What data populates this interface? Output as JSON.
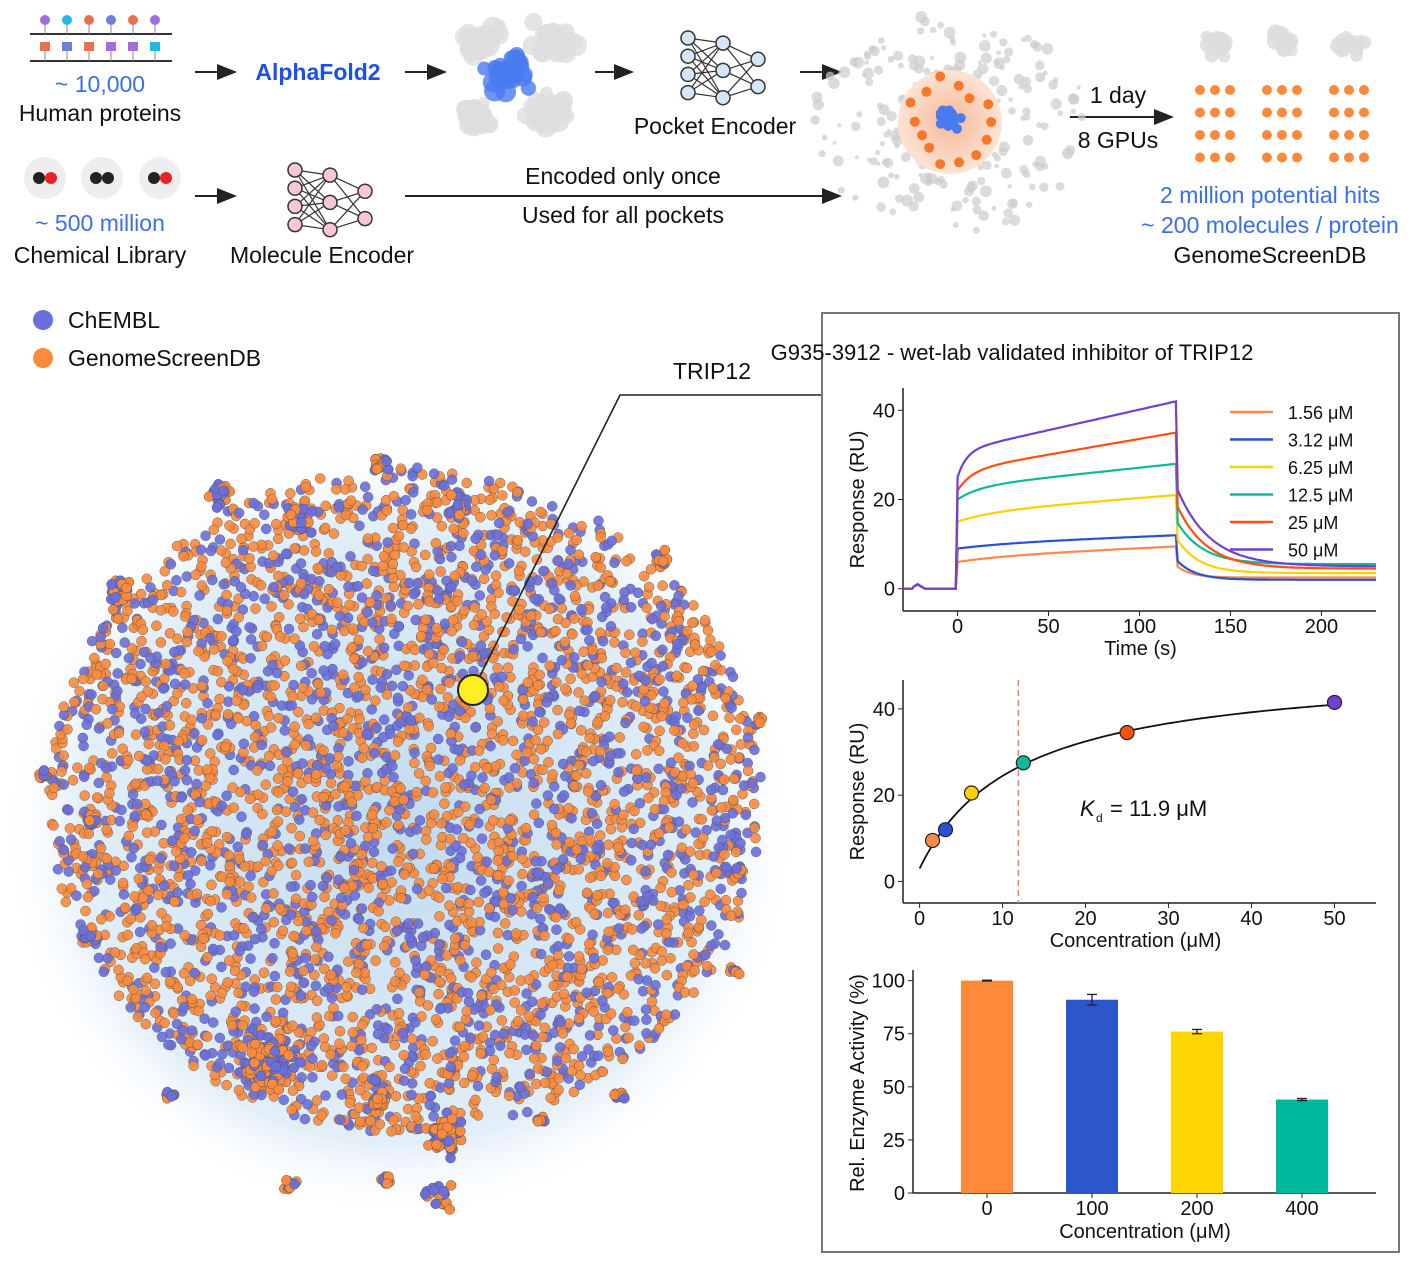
{
  "pipeline": {
    "proteins_count": "~ 10,000",
    "proteins_label": "Human proteins",
    "structure_tool": "AlphaFold2",
    "pocket_encoder": "Pocket Encoder",
    "compute_time": "1 day",
    "compute_gpus": "8 GPUs",
    "hits": "2 million potential hits",
    "per_protein": "~ 200 molecules / protein",
    "db_name": "GenomeScreenDB",
    "library_count": "~ 500 million",
    "library_label": "Chemical Library",
    "molecule_encoder": "Molecule Encoder",
    "encoded_once": "Encoded only once",
    "used_for_all": "Used for all pockets"
  },
  "legend": [
    {
      "label": "ChEMBL",
      "color": "#6b6fdc"
    },
    {
      "label": "GenomeScreenDB",
      "color": "#fb8a3c"
    }
  ],
  "highlight": {
    "label": "TRIP12",
    "color": "#ffee22"
  },
  "panel": {
    "title": "G935-3912 - wet-lab validated inhibitor of TRIP12"
  },
  "chart_data": [
    {
      "type": "line",
      "xlabel": "Time (s)",
      "ylabel": "Response (RU)",
      "xlim": [
        -30,
        230
      ],
      "ylim": [
        -5,
        45
      ],
      "xticks": [
        0,
        50,
        100,
        150,
        200
      ],
      "yticks": [
        0,
        20,
        40
      ],
      "legend_position": "top-right",
      "series": [
        {
          "name": "1.56 μM",
          "color": "#fb8a4a",
          "start": 6,
          "end": 9.5,
          "residual": 2.5
        },
        {
          "name": "3.12 μM",
          "color": "#2a50d0",
          "start": 9,
          "end": 12,
          "residual": 2
        },
        {
          "name": "6.25 μM",
          "color": "#ffd000",
          "start": 15,
          "end": 21,
          "residual": 3.5
        },
        {
          "name": "12.5 μM",
          "color": "#10b89a",
          "start": 20,
          "end": 28,
          "residual": 5.5
        },
        {
          "name": "25 μM",
          "color": "#ff5010",
          "start": 22,
          "end": 35,
          "residual": 4.5
        },
        {
          "name": "50 μM",
          "color": "#7040d0",
          "start": 25,
          "end": 42,
          "residual": 5
        }
      ]
    },
    {
      "type": "scatter",
      "xlabel": "Concentration (μM)",
      "ylabel": "Response (RU)",
      "xlim": [
        -2,
        55
      ],
      "ylim": [
        -5,
        46.7
      ],
      "xticks": [
        0,
        10,
        20,
        30,
        40,
        50
      ],
      "yticks": [
        0,
        20,
        40
      ],
      "x": [
        1.56,
        3.12,
        6.25,
        12.5,
        25,
        50
      ],
      "y": [
        9.5,
        12,
        20.5,
        27.5,
        34.5,
        41.5
      ],
      "colors": [
        "#fb8a4a",
        "#2a50d0",
        "#ffd000",
        "#10b89a",
        "#ff5010",
        "#7040d0"
      ],
      "kd_value": 11.9,
      "kd_label": "= 11.9 μM",
      "kd_symbol": "K",
      "kd_sub": "d"
    },
    {
      "type": "bar",
      "xlabel": "Concentration (μM)",
      "ylabel": "Rel. Enzyme Activity (%)",
      "ylim": [
        0,
        105
      ],
      "yticks": [
        0,
        25,
        50,
        75,
        100
      ],
      "categories": [
        "0",
        "100",
        "200",
        "400"
      ],
      "values": [
        100,
        91,
        76,
        44
      ],
      "errors": [
        0.2,
        2.5,
        1,
        0.5
      ],
      "colors": [
        "#fd8a38",
        "#2d55cc",
        "#ffd500",
        "#00b89c"
      ]
    }
  ]
}
